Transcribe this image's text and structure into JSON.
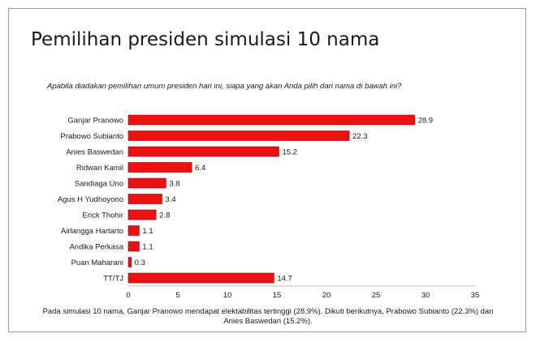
{
  "title": "Pemilihan presiden simulasi 10 nama",
  "subtitle": "Apabila diadakan pemilihan umum presiden hari ini, siapa yang akan Anda pilih dari nama di bawah ini?",
  "caption": "Pada simulasi 10 nama, Ganjar Pranowo mendapat elektabilitas tertinggi (28.9%). Dikuti berikutnya, Prabowo Subianto (22.3%) dan Anies Baswedan (15.2%).",
  "chart_data": {
    "type": "bar",
    "orientation": "horizontal",
    "categories": [
      "Ganjar Pranowo",
      "Prabowo Subianto",
      "Anies Baswedan",
      "Ridwan Kamil",
      "Sandiaga Uno",
      "Agus H Yudhoyono",
      "Erick Thohir",
      "Airlangga Hartarto",
      "Andika Perkasa",
      "Puan Maharani",
      "TT/TJ"
    ],
    "values": [
      28.9,
      22.3,
      15.2,
      6.4,
      3.8,
      3.4,
      2.8,
      1.1,
      1.1,
      0.3,
      14.7
    ],
    "data_labels": [
      "28.9",
      "22.3",
      "15.2",
      "6.4",
      "3.8",
      "3.4",
      "2.8",
      "1.1",
      "1.1",
      "0.3",
      "14.7"
    ],
    "xlim": [
      0,
      35
    ],
    "xticks": [
      "0",
      "5",
      "10",
      "15",
      "20",
      "25",
      "30",
      "35"
    ],
    "grid": false,
    "bar_color": "#ee1111",
    "bar_border_color": "#8b0000"
  }
}
